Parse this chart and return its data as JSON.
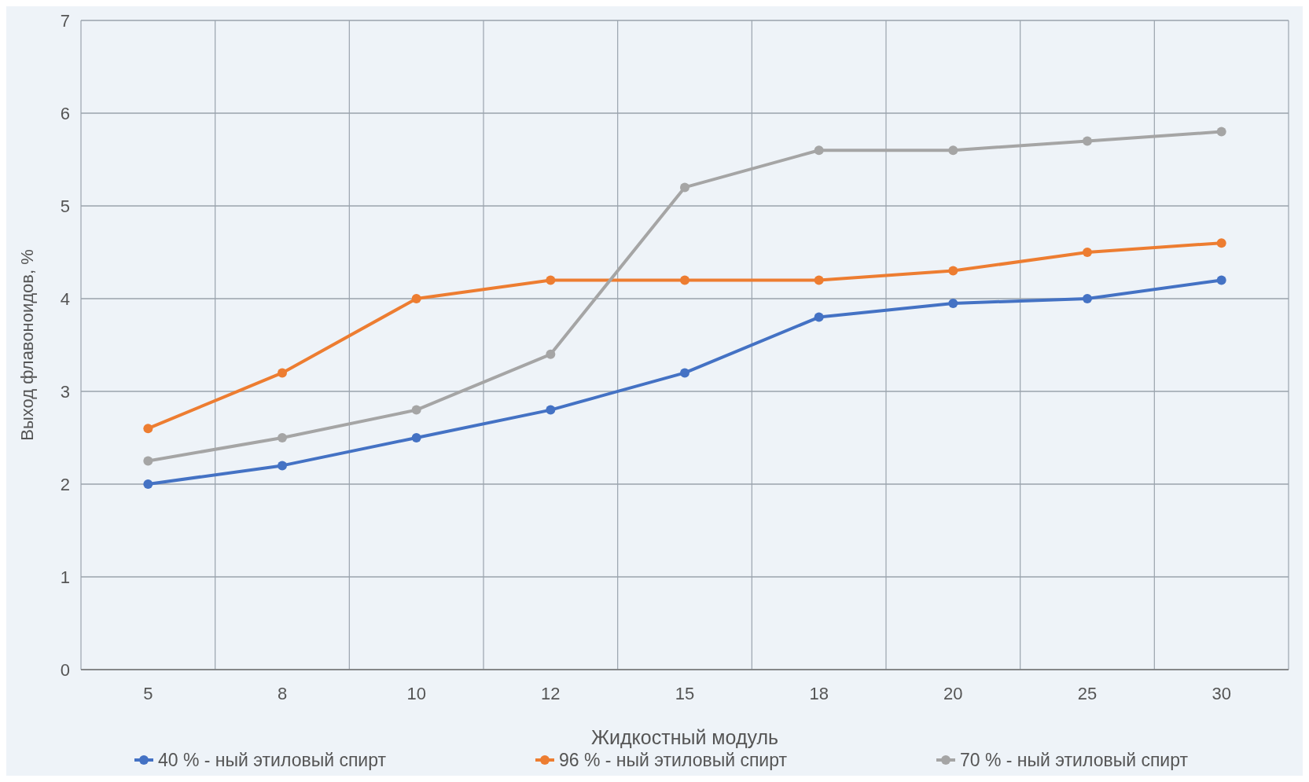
{
  "chart_data": {
    "type": "line",
    "xlabel": "Жидкостный модуль",
    "ylabel": "Выход флавоноидов, %",
    "categories": [
      "5",
      "8",
      "10",
      "12",
      "15",
      "18",
      "20",
      "25",
      "30"
    ],
    "series": [
      {
        "name": "40 % - ный этиловый спирт",
        "color": "#4472c4",
        "values": [
          2.0,
          2.2,
          2.5,
          2.8,
          3.2,
          3.8,
          3.95,
          4.0,
          4.2
        ]
      },
      {
        "name": "96 % - ный этиловый спирт",
        "color": "#ed7d31",
        "values": [
          2.6,
          3.2,
          4.0,
          4.2,
          4.2,
          4.2,
          4.3,
          4.5,
          4.6
        ]
      },
      {
        "name": "70 % - ный этиловый спирт",
        "color": "#a5a5a5",
        "values": [
          2.25,
          2.5,
          2.8,
          3.4,
          5.2,
          5.6,
          5.6,
          5.7,
          5.8
        ]
      }
    ],
    "ylim": [
      0,
      7
    ],
    "yticks": [
      0,
      1,
      2,
      3,
      4,
      5,
      6,
      7
    ],
    "grid": true,
    "legend": "bottom",
    "marker": "circle",
    "line_style": "solid"
  }
}
